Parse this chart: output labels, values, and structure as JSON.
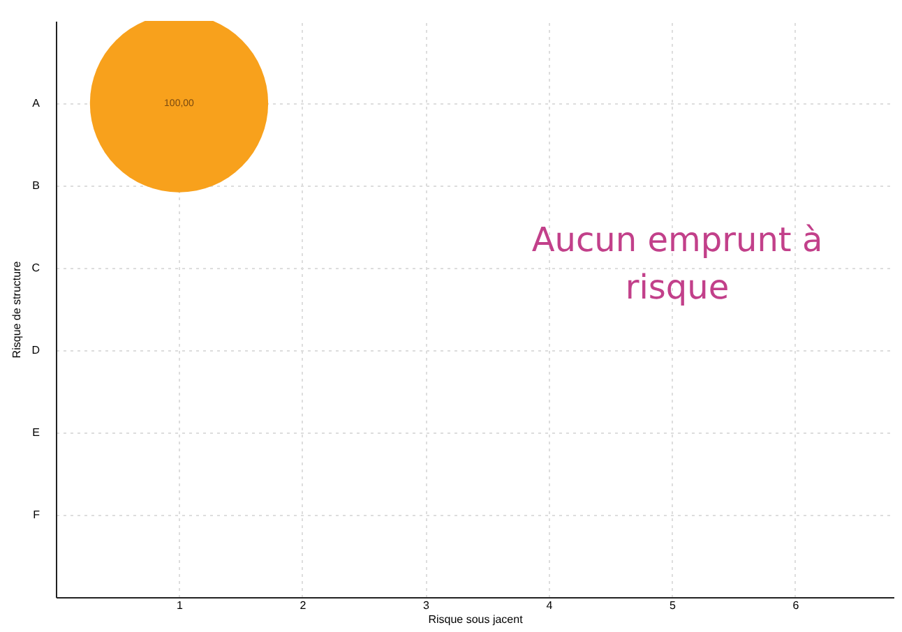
{
  "chart_data": {
    "type": "bubble",
    "orientation": "horizontal",
    "xlabel": "Risque sous jacent",
    "ylabel": "Risque de structure",
    "categories": [
      "A",
      "B",
      "C",
      "D",
      "E",
      "F"
    ],
    "xlim": [
      0,
      6.8
    ],
    "xticks": [
      1,
      2,
      3,
      4,
      5,
      6
    ],
    "series": [
      {
        "color": "#f8a11c",
        "values": [
          1,
          null,
          null,
          null,
          null,
          null
        ],
        "sizes": [
          1,
          null,
          null,
          null,
          null,
          null
        ]
      }
    ],
    "grid": true,
    "annotations": [
      {
        "text": "100,00",
        "x": 1,
        "y": "A"
      },
      "Aucun emprunt à risque"
    ]
  }
}
